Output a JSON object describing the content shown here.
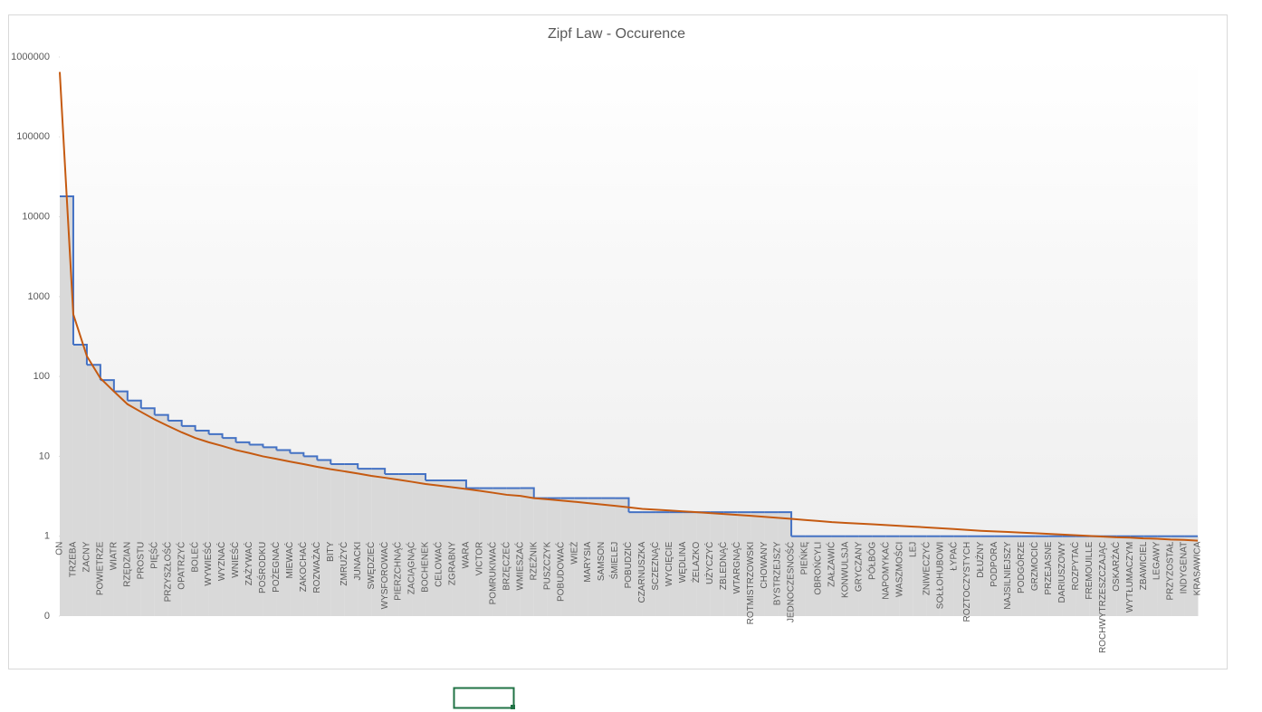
{
  "chart_data": {
    "type": "step-area-line",
    "title": "Zipf Law - Occurence",
    "log_scale": true,
    "categories": [
      "ON",
      "TRZEBA",
      "ZACNY",
      "POWIETRZE",
      "WIATR",
      "RZĘDZIAN",
      "PROSTU",
      "PIĘŚĆ",
      "PRZYSZŁOŚĆ",
      "OPATRZYĆ",
      "BOLEĆ",
      "WYWIEŚĆ",
      "WYZNAĆ",
      "WNIEŚĆ",
      "ZAŻYWAĆ",
      "POŚRODKU",
      "POŻEGNAĆ",
      "MIEWAĆ",
      "ZAKOCHAĆ",
      "ROZWAŻAĆ",
      "BITY",
      "ZMRUŻYĆ",
      "JUNACKI",
      "SWĘDZIEĆ",
      "WYSFOROWAĆ",
      "PIERZCHNĄĆ",
      "ZACIĄGNĄĆ",
      "BOCHENEK",
      "CELOWAĆ",
      "ZGRABNY",
      "WARA",
      "VICTOR",
      "POMRUKIWAĆ",
      "BRZĘCZEĆ",
      "WMIESZAĆ",
      "RZEŹNIK",
      "PUSZCZYK",
      "POBUDOWAĆ",
      "WIEŻ",
      "MARYSIA",
      "SAMSON",
      "ŚMIELEJ",
      "POBUDZIĆ",
      "CZARNUSZKA",
      "SCZEZNĄĆ",
      "WYCIĘCIE",
      "WĘDLINA",
      "ŻELAZKO",
      "UŻYCZYĆ",
      "ZBLEDNĄĆ",
      "WTARGNĄĆ",
      "ROTMISTRZOWSKI",
      "CHOWANY",
      "BYSTRZEJSZY",
      "JEDNOCZESNOŚĆ",
      "PIEŃKĘ",
      "OBROŃCYLI",
      "ZAŁZAWIĆ",
      "KONWULSJA",
      "GRYCZANY",
      "PÓŁBÓG",
      "NAPOMYKAĆ",
      "WASZMOŚCI",
      "LEJ",
      "ZNIWECZYĆ",
      "SOŁŁOHUBOWI",
      "ŁYPAĆ",
      "ROZTOCZYSTYCH",
      "DŁUŻNY",
      "PODPORA",
      "NAJSILNIEJSZY",
      "PODGÓRZE",
      "GRZMOCIĆ",
      "PRZEJASNE",
      "DARIUSZOWY",
      "ROZPYTAĆ",
      "FREMOUILLE",
      "ROCHWYTRZESZCZAJĄC",
      "OSKARŻAĆ",
      "WYTŁUMACZYM",
      "ZBAWICIEL",
      "LEGAWY",
      "PRZYZOSTAŁ",
      "INDYGENAT",
      "KRASAWICA"
    ],
    "series": [
      {
        "type": "step-area",
        "color": "#4472c4",
        "fill": "#d9d9d9",
        "values": [
          18000,
          250,
          140,
          90,
          65,
          50,
          40,
          33,
          28,
          24,
          21,
          19,
          17,
          15,
          14,
          13,
          12,
          11,
          10,
          9,
          8,
          8,
          7,
          7,
          6,
          6,
          6,
          5,
          5,
          5,
          4,
          4,
          4,
          4,
          4,
          3,
          3,
          3,
          3,
          3,
          3,
          3,
          2,
          2,
          2,
          2,
          2,
          2,
          2,
          2,
          2,
          2,
          2,
          2,
          1,
          1,
          1,
          1,
          1,
          1,
          1,
          1,
          1,
          1,
          1,
          1,
          1,
          1,
          1,
          1,
          1,
          1,
          1,
          1,
          1,
          1,
          1,
          1,
          1,
          1,
          1,
          1,
          1,
          1,
          1
        ]
      },
      {
        "type": "line",
        "color": "#c55a11",
        "values": [
          650000,
          600,
          180,
          95,
          65,
          45,
          36,
          29,
          24,
          20,
          17,
          15,
          13.5,
          12,
          11,
          10,
          9.3,
          8.6,
          8,
          7.4,
          6.9,
          6.5,
          6.1,
          5.7,
          5.4,
          5.1,
          4.8,
          4.5,
          4.3,
          4.1,
          3.9,
          3.7,
          3.5,
          3.3,
          3.2,
          3.0,
          2.9,
          2.8,
          2.7,
          2.6,
          2.5,
          2.4,
          2.3,
          2.2,
          2.15,
          2.1,
          2.05,
          2.0,
          1.95,
          1.9,
          1.85,
          1.8,
          1.75,
          1.7,
          1.65,
          1.6,
          1.55,
          1.5,
          1.47,
          1.44,
          1.41,
          1.38,
          1.35,
          1.32,
          1.29,
          1.26,
          1.23,
          1.2,
          1.17,
          1.15,
          1.13,
          1.11,
          1.09,
          1.07,
          1.05,
          1.03,
          1.01,
          0.99,
          0.97,
          0.96,
          0.94,
          0.93,
          0.91,
          0.9,
          0.88
        ]
      }
    ],
    "ylim": [
      0.1,
      1000000
    ],
    "yticks": [
      {
        "value": 0.1,
        "label": "0"
      },
      1,
      10,
      100,
      1000,
      10000,
      100000,
      1000000
    ]
  }
}
